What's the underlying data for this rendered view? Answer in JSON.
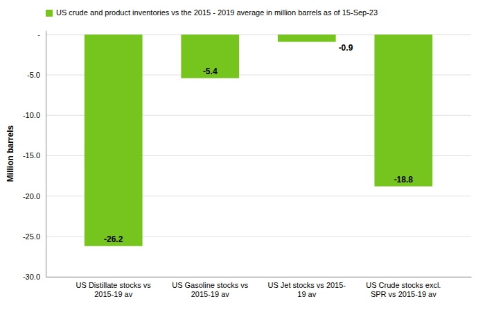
{
  "chart_data": {
    "type": "bar",
    "categories": [
      "US Distillate stocks vs\n2015-19 av",
      "US Gasoline stocks vs\n2015-19 av",
      "US Jet stocks vs 2015-\n19 av",
      "US Crude stocks excl.\nSPR vs 2015-19 av"
    ],
    "series": [
      {
        "name": "US crude and product inventories vs the 2015 - 2019 average in million barrels as of 15-Sep-23",
        "color": "#76c41e",
        "values": [
          -26.2,
          -5.4,
          -0.9,
          -18.8
        ]
      }
    ],
    "y_label": "Million barrels",
    "ylim": [
      -30.0,
      0.5
    ],
    "yticks": [
      {
        "value": 0,
        "label": "-"
      },
      {
        "value": -5.0,
        "label": "-5.0"
      },
      {
        "value": -10.0,
        "label": "-10.0"
      },
      {
        "value": -15.0,
        "label": "-15.0"
      },
      {
        "value": -20.0,
        "label": "-20.0"
      },
      {
        "value": -25.0,
        "label": "-25.0"
      },
      {
        "value": -30.0,
        "label": "-30.0"
      }
    ],
    "grid": true,
    "legend": "upper left",
    "data_labels": true
  }
}
